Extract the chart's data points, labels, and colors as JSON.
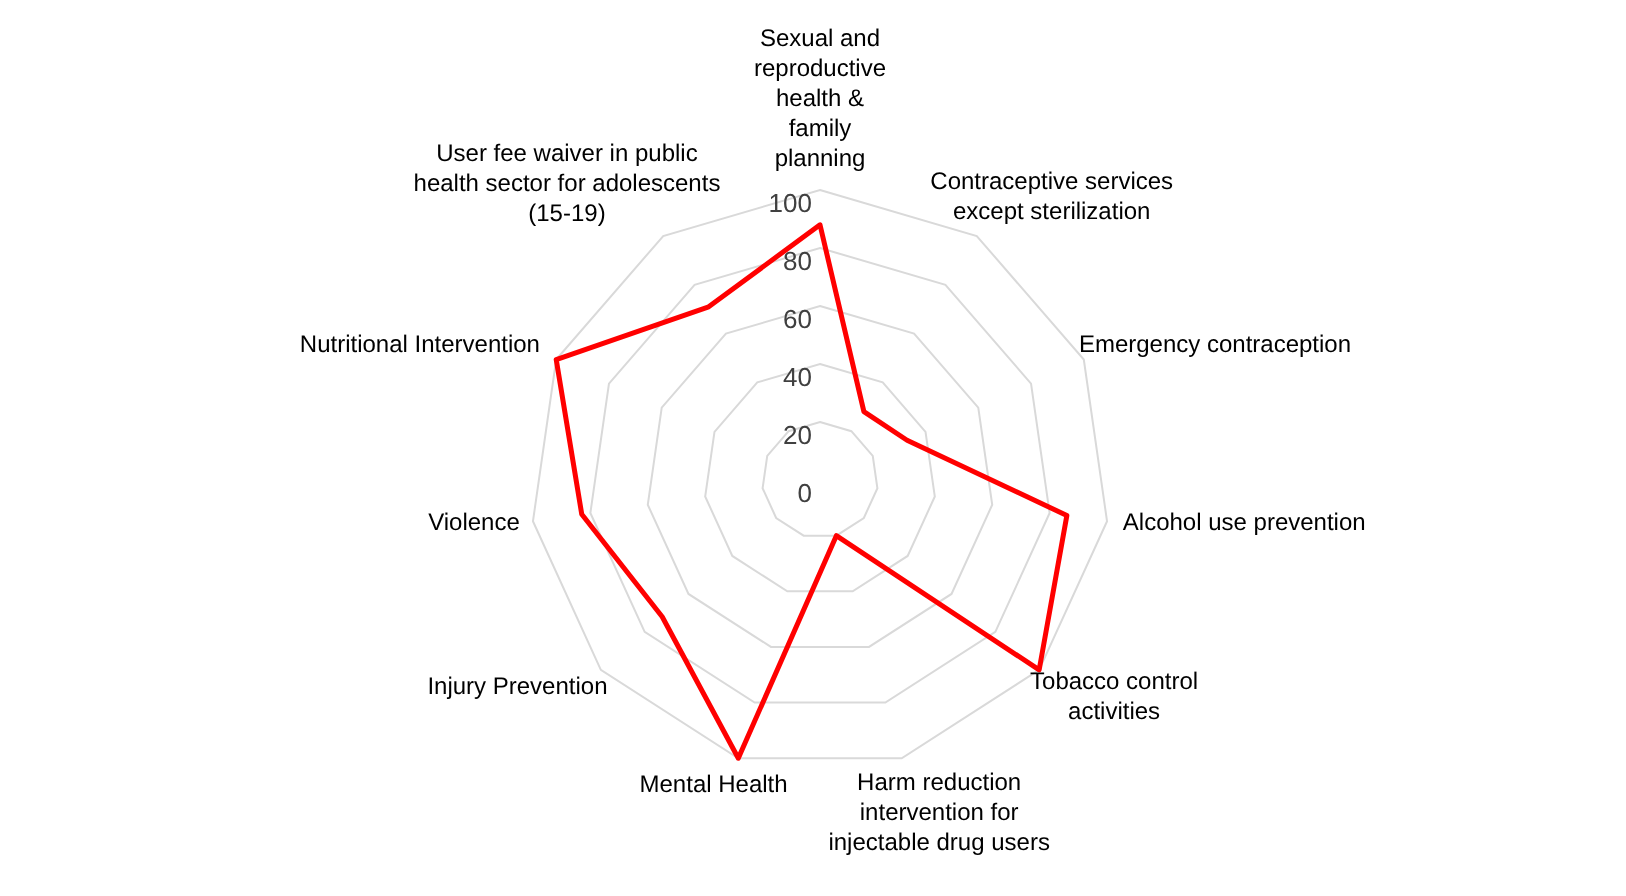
{
  "chart_data": {
    "type": "radar",
    "categories": [
      "Sexual and reproductive health & family planning",
      "Contraceptive services except sterilization",
      "Emergency contraception",
      "Alcohol use prevention",
      "Tobacco control activities",
      "Harm reduction intervention for injectable drug users",
      "Mental Health",
      "Injury Prevention",
      "Violence",
      "Nutritional Intervention",
      "User fee waiver in public health sector for adolescents (15-19)"
    ],
    "series": [
      {
        "color": "#ff0000",
        "values": [
          88,
          28,
          33,
          86,
          100,
          20,
          100,
          72,
          83,
          100,
          71
        ]
      }
    ],
    "ylim": [
      0,
      100
    ],
    "yticks": [
      0,
      20,
      40,
      60,
      80,
      100
    ],
    "grid": true
  }
}
